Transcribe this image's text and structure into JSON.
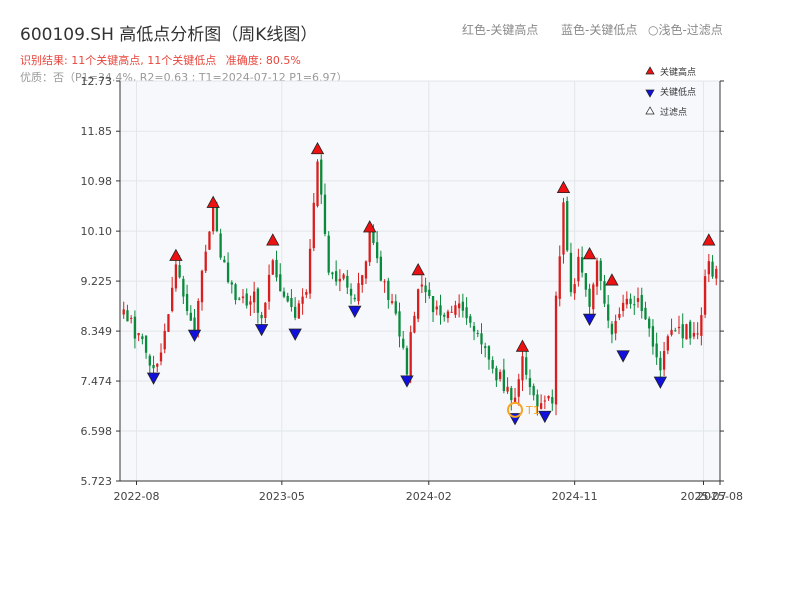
{
  "header": {
    "title": "600109.SH 高低点分析图（周K线图）",
    "legend_red": "红色-关键高点",
    "legend_blue": "蓝色-关键低点",
    "legend_light": "○浅色-过滤点",
    "result_text": "识别结果: 11个关键高点, 11个关键低点",
    "accuracy_text": "准确度: 80.5%",
    "quality_text": "优质：否（P1=34.4%, R2=0.63 ; T1=2024-07-12 P1=6.97）"
  },
  "colors": {
    "up": "#d81e1e",
    "down": "#0a8a3c",
    "high_marker": "#ee1111",
    "low_marker": "#1111dd",
    "t1": "#f5a623",
    "plot_bg": "#f6f8fb",
    "grid": "#e3e6ea"
  },
  "chart_data": {
    "type": "candlestick",
    "ylim": [
      5.723,
      12.73
    ],
    "y_ticks": [
      5.723,
      6.598,
      7.474,
      8.349,
      9.225,
      10.1,
      10.98,
      11.85,
      12.73
    ],
    "y_tick_labels": [
      "5.723",
      "6.598",
      "7.474",
      "8.349",
      "9.225",
      "10.10",
      "10.98",
      "11.85",
      "12.73"
    ],
    "x_range": [
      "2022-07-01",
      "2025-08-01"
    ],
    "x_ticks": [
      {
        "date": "2022-08-01",
        "label": "2022-08"
      },
      {
        "date": "2023-05-01",
        "label": "2023-05"
      },
      {
        "date": "2024-02-01",
        "label": "2024-02"
      },
      {
        "date": "2024-11-01",
        "label": "2024-11"
      },
      {
        "date": "2025-07-01",
        "label": "2025-07"
      },
      {
        "date": "2025-08-01",
        "label": "2025-08"
      }
    ],
    "legend": [
      {
        "label": "关键高点",
        "marker": "triangle-up",
        "color": "#ee1111"
      },
      {
        "label": "关键低点",
        "marker": "triangle-down",
        "color": "#1111dd"
      },
      {
        "label": "过滤点",
        "marker": "triangle-up-hollow",
        "color": "#ffffff"
      }
    ],
    "anchors": [
      [
        "2022-07-08",
        8.6
      ],
      [
        "2022-08-05",
        8.3
      ],
      [
        "2022-09-02",
        7.7
      ],
      [
        "2022-09-23",
        8.2
      ],
      [
        "2022-10-14",
        9.4
      ],
      [
        "2022-11-04",
        8.8
      ],
      [
        "2022-11-18",
        8.45
      ],
      [
        "2022-12-09",
        9.8
      ],
      [
        "2022-12-23",
        10.45
      ],
      [
        "2023-01-13",
        9.4
      ],
      [
        "2023-02-10",
        8.9
      ],
      [
        "2023-03-10",
        9.0
      ],
      [
        "2023-03-24",
        8.55
      ],
      [
        "2023-04-14",
        9.7
      ],
      [
        "2023-05-05",
        8.8
      ],
      [
        "2023-05-26",
        8.6
      ],
      [
        "2023-06-16",
        8.9
      ],
      [
        "2023-07-07",
        11.3
      ],
      [
        "2023-07-28",
        9.5
      ],
      [
        "2023-08-25",
        9.2
      ],
      [
        "2023-09-15",
        8.9
      ],
      [
        "2023-10-13",
        10.0
      ],
      [
        "2023-11-03",
        9.3
      ],
      [
        "2023-12-01",
        8.7
      ],
      [
        "2023-12-22",
        7.7
      ],
      [
        "2024-01-12",
        9.2
      ],
      [
        "2024-02-02",
        8.9
      ],
      [
        "2024-03-08",
        8.6
      ],
      [
        "2024-04-05",
        8.8
      ],
      [
        "2024-05-10",
        8.0
      ],
      [
        "2024-06-14",
        7.5
      ],
      [
        "2024-07-12",
        7.05
      ],
      [
        "2024-07-26",
        7.85
      ],
      [
        "2024-08-16",
        7.2
      ],
      [
        "2024-09-06",
        7.05
      ],
      [
        "2024-09-20",
        7.1
      ],
      [
        "2024-09-27",
        8.9
      ],
      [
        "2024-10-11",
        10.6
      ],
      [
        "2024-10-25",
        9.0
      ],
      [
        "2024-11-08",
        9.6
      ],
      [
        "2024-11-29",
        8.8
      ],
      [
        "2024-12-13",
        9.5
      ],
      [
        "2025-01-10",
        8.2
      ],
      [
        "2025-01-31",
        9.0
      ],
      [
        "2025-02-21",
        8.8
      ],
      [
        "2025-03-14",
        8.7
      ],
      [
        "2025-04-11",
        7.7
      ],
      [
        "2025-05-02",
        8.3
      ],
      [
        "2025-05-30",
        8.4
      ],
      [
        "2025-06-20",
        8.3
      ],
      [
        "2025-07-11",
        9.6
      ],
      [
        "2025-07-25",
        9.3
      ]
    ],
    "key_highs": [
      {
        "date": "2022-10-14",
        "value": 9.55
      },
      {
        "date": "2022-12-23",
        "value": 10.48
      },
      {
        "date": "2023-04-14",
        "value": 9.82
      },
      {
        "date": "2023-07-07",
        "value": 11.42
      },
      {
        "date": "2023-10-13",
        "value": 10.05
      },
      {
        "date": "2024-01-12",
        "value": 9.3
      },
      {
        "date": "2024-07-26",
        "value": 7.96
      },
      {
        "date": "2024-10-11",
        "value": 10.74
      },
      {
        "date": "2024-11-29",
        "value": 9.58
      },
      {
        "date": "2025-01-10",
        "value": 9.12
      },
      {
        "date": "2025-07-11",
        "value": 9.82
      }
    ],
    "key_lows": [
      {
        "date": "2022-09-02",
        "value": 7.65
      },
      {
        "date": "2022-11-18",
        "value": 8.4
      },
      {
        "date": "2023-03-24",
        "value": 8.5
      },
      {
        "date": "2023-05-26",
        "value": 8.42
      },
      {
        "date": "2023-09-15",
        "value": 8.82
      },
      {
        "date": "2023-12-22",
        "value": 7.6
      },
      {
        "date": "2024-07-12",
        "value": 6.94
      },
      {
        "date": "2024-09-06",
        "value": 6.98
      },
      {
        "date": "2024-11-29",
        "value": 8.68
      },
      {
        "date": "2025-01-31",
        "value": 8.04
      },
      {
        "date": "2025-04-11",
        "value": 7.58
      }
    ],
    "t1": {
      "date": "2024-07-12",
      "value": 6.97,
      "label": "T1"
    }
  }
}
